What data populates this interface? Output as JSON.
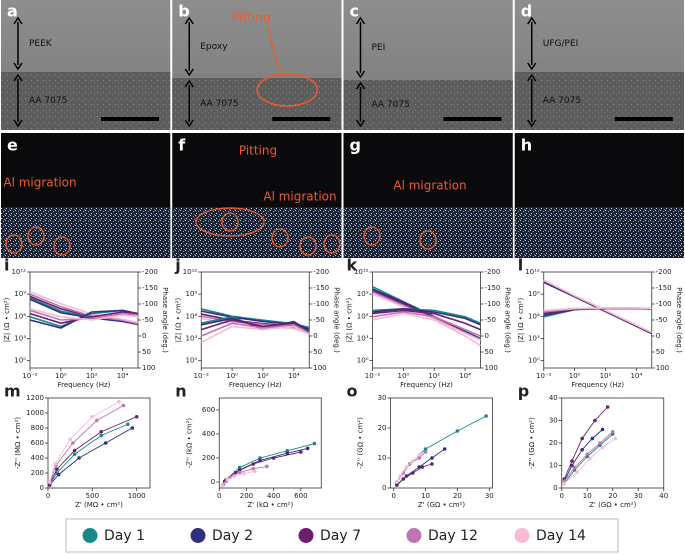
{
  "images": [
    {
      "label": "a",
      "layers": [
        "PEEK",
        "AA 7075"
      ]
    },
    {
      "label": "b",
      "layers": [
        "Epoxy",
        "AA 7075"
      ],
      "annotation": "Pitting"
    },
    {
      "label": "c",
      "layers": [
        "PEI",
        "AA 7075"
      ]
    },
    {
      "label": "d",
      "layers": [
        "UFG/PEI",
        "AA 7075"
      ]
    }
  ],
  "eds": [
    {
      "label": "e",
      "annotations": [
        "Al migration"
      ]
    },
    {
      "label": "f",
      "annotations": [
        "Pitting",
        "Al migration"
      ]
    },
    {
      "label": "g",
      "annotations": [
        "Al migration"
      ]
    },
    {
      "label": "h",
      "annotations": []
    }
  ],
  "legend": [
    {
      "label": "Day 1",
      "color": "#17898a"
    },
    {
      "label": "Day 2",
      "color": "#2f2f80"
    },
    {
      "label": "Day 7",
      "color": "#6e1d70"
    },
    {
      "label": "Day 12",
      "color": "#c174b4"
    },
    {
      "label": "Day 14",
      "color": "#f5bcd4"
    }
  ],
  "chart_data": [
    {
      "type": "bode",
      "panel_label": "i",
      "xlabel": "Frequency (Hz)",
      "ylabel": "|Z| (Ω • cm²)",
      "y2label": "Phase angle (deg.)",
      "log_x": true,
      "log_y": true,
      "x": [
        0.01,
        1,
        100,
        10000,
        100000
      ],
      "xlim": [
        0.01,
        100000
      ],
      "xticks": [
        {
          "value": 0.01,
          "label": "10⁻²"
        },
        {
          "value": 1,
          "label": "10⁰"
        },
        {
          "value": 100,
          "label": "10²"
        },
        {
          "value": 10000,
          "label": "10⁴"
        }
      ],
      "ylim": [
        0.1,
        1000000000000
      ],
      "yticks": [
        {
          "value": 1,
          "label": "10⁰"
        },
        {
          "value": 1000,
          "label": "10³"
        },
        {
          "value": 1000000,
          "label": "10⁶"
        },
        {
          "value": 1000000000,
          "label": "10⁹"
        },
        {
          "value": 1000000000000,
          "label": "10¹²"
        }
      ],
      "y2lim": [
        100,
        -200
      ],
      "y2ticks": [
        -200,
        -150,
        -100,
        -50,
        0,
        50,
        100
      ],
      "series": [
        {
          "values": [
            300000000,
            5000000,
            800000,
            300000,
            100000
          ]
        },
        {
          "values": [
            200000000,
            3000000,
            600000,
            200000,
            80000
          ]
        },
        {
          "values": [
            500000000,
            10000000,
            1000000,
            300000,
            100000
          ]
        },
        {
          "values": [
            1000000000,
            20000000,
            1000000,
            300000,
            100000
          ]
        },
        {
          "values": [
            2000000000,
            50000000,
            2000000,
            400000,
            150000
          ]
        },
        {
          "axis": "y2",
          "values": [
            -60,
            -30,
            -70,
            -80,
            -70
          ]
        },
        {
          "axis": "y2",
          "values": [
            -50,
            -25,
            -75,
            -80,
            -70
          ]
        },
        {
          "axis": "y2",
          "values": [
            -70,
            -40,
            -60,
            -75,
            -70
          ]
        },
        {
          "axis": "y2",
          "values": [
            -80,
            -50,
            -55,
            -70,
            -65
          ]
        },
        {
          "axis": "y2",
          "values": [
            -85,
            -60,
            -50,
            -65,
            -60
          ]
        }
      ]
    },
    {
      "type": "bode",
      "panel_label": "j",
      "xlabel": "Frequency (Hz)",
      "ylabel": "|Z| (Ω • cm²)",
      "y2label": "Phase angle (deg.)",
      "log_x": true,
      "log_y": true,
      "x": [
        0.01,
        1,
        100,
        10000,
        100000
      ],
      "xlim": [
        0.01,
        100000
      ],
      "xticks": [
        {
          "value": 0.01,
          "label": "10⁻²"
        },
        {
          "value": 1,
          "label": "10⁰"
        },
        {
          "value": 100,
          "label": "10²"
        },
        {
          "value": 10000,
          "label": "10⁴"
        }
      ],
      "ylim": [
        0.1,
        1000000000000
      ],
      "yticks": [
        {
          "value": 1,
          "label": "10⁰"
        },
        {
          "value": 1000,
          "label": "10³"
        },
        {
          "value": 1000000,
          "label": "10⁶"
        },
        {
          "value": 1000000000,
          "label": "10⁹"
        },
        {
          "value": 1000000000000,
          "label": "10¹²"
        }
      ],
      "y2lim": [
        100,
        -200
      ],
      "y2ticks": [
        -200,
        -150,
        -100,
        -50,
        0,
        50,
        100
      ],
      "series": [
        {
          "values": [
            10000000,
            1000000,
            300000,
            100000,
            30000
          ]
        },
        {
          "values": [
            5000000,
            800000,
            200000,
            80000,
            20000
          ]
        },
        {
          "values": [
            2000000,
            300000,
            100000,
            50000,
            10000
          ]
        },
        {
          "values": [
            1000000,
            200000,
            80000,
            30000,
            8000
          ]
        },
        {
          "values": [
            500000,
            100000,
            50000,
            20000,
            5000
          ]
        },
        {
          "axis": "y2",
          "values": [
            -40,
            -60,
            -20,
            -40,
            -10
          ]
        },
        {
          "axis": "y2",
          "values": [
            -35,
            -55,
            -25,
            -45,
            -15
          ]
        },
        {
          "axis": "y2",
          "values": [
            -20,
            -50,
            -30,
            -40,
            -10
          ]
        },
        {
          "axis": "y2",
          "values": [
            0,
            -40,
            -25,
            -35,
            -10
          ]
        },
        {
          "axis": "y2",
          "values": [
            20,
            -30,
            -20,
            -30,
            -5
          ]
        }
      ]
    },
    {
      "type": "bode",
      "panel_label": "k",
      "xlabel": "Frequency (Hz)",
      "ylabel": "|Z| (Ω • cm²)",
      "y2label": "Phase angle (deg.)",
      "log_x": true,
      "log_y": true,
      "x": [
        0.01,
        1,
        100,
        10000,
        100000
      ],
      "xlim": [
        0.01,
        100000
      ],
      "xticks": [
        {
          "value": 0.01,
          "label": "10⁻²"
        },
        {
          "value": 1,
          "label": "10⁰"
        },
        {
          "value": 100,
          "label": "10²"
        },
        {
          "value": 10000,
          "label": "10⁴"
        }
      ],
      "ylim": [
        0.1,
        1000000000000
      ],
      "yticks": [
        {
          "value": 1,
          "label": "10⁰"
        },
        {
          "value": 1000,
          "label": "10³"
        },
        {
          "value": 1000000,
          "label": "10⁶"
        },
        {
          "value": 1000000000,
          "label": "10⁹"
        },
        {
          "value": 1000000000000,
          "label": "10¹²"
        }
      ],
      "y2lim": [
        100,
        -200
      ],
      "y2ticks": [
        -200,
        -150,
        -100,
        -50,
        0,
        50,
        100
      ],
      "series": [
        {
          "values": [
            10000000000,
            100000000,
            1000000,
            10000,
            1000
          ]
        },
        {
          "values": [
            5000000000,
            80000000,
            800000,
            8000,
            900
          ]
        },
        {
          "values": [
            3000000000,
            50000000,
            600000,
            7000,
            800
          ]
        },
        {
          "values": [
            2000000000,
            30000000,
            500000,
            6000,
            700
          ]
        },
        {
          "values": [
            1000000000,
            20000000,
            400000,
            5000,
            600
          ]
        },
        {
          "axis": "y2",
          "values": [
            -80,
            -85,
            -80,
            -60,
            -40
          ]
        },
        {
          "axis": "y2",
          "values": [
            -75,
            -85,
            -75,
            -55,
            -35
          ]
        },
        {
          "axis": "y2",
          "values": [
            -70,
            -80,
            -70,
            -40,
            -20
          ]
        },
        {
          "axis": "y2",
          "values": [
            -60,
            -75,
            -60,
            -20,
            0
          ]
        },
        {
          "axis": "y2",
          "values": [
            -50,
            -70,
            -50,
            0,
            30
          ]
        }
      ]
    },
    {
      "type": "bode",
      "panel_label": "l",
      "xlabel": "Frequency (Hz)",
      "ylabel": "|Z| (Ω • cm²)",
      "y2label": "Phase angle (deg.)",
      "log_x": true,
      "log_y": true,
      "x": [
        0.01,
        1,
        100,
        10000,
        100000
      ],
      "xlim": [
        0.01,
        100000
      ],
      "xticks": [
        {
          "value": 0.01,
          "label": "10⁻²"
        },
        {
          "value": 1,
          "label": "10⁰"
        },
        {
          "value": 100,
          "label": "10²"
        },
        {
          "value": 10000,
          "label": "10⁴"
        }
      ],
      "ylim": [
        0.1,
        1000000000000
      ],
      "yticks": [
        {
          "value": 1,
          "label": "10⁰"
        },
        {
          "value": 1000,
          "label": "10³"
        },
        {
          "value": 1000000,
          "label": "10⁶"
        },
        {
          "value": 1000000000,
          "label": "10⁹"
        },
        {
          "value": 1000000000000,
          "label": "10¹²"
        }
      ],
      "y2lim": [
        100,
        -200
      ],
      "y2ticks": [
        -200,
        -150,
        -100,
        -50,
        0,
        50,
        100
      ],
      "series": [
        {
          "values": [
            50000000000,
            500000000,
            5000000,
            50000,
            5000
          ]
        },
        {
          "values": [
            40000000000,
            450000000,
            4500000,
            45000,
            4500
          ]
        },
        {
          "values": [
            60000000000,
            550000000,
            5500000,
            55000,
            5500
          ]
        },
        {
          "values": [
            70000000000,
            600000000,
            6000000,
            60000,
            6000
          ]
        },
        {
          "values": [
            80000000000,
            650000000,
            6500000,
            65000,
            6500
          ]
        },
        {
          "axis": "y2",
          "values": [
            -60,
            -82,
            -86,
            -86,
            -84
          ]
        },
        {
          "axis": "y2",
          "values": [
            -65,
            -83,
            -86,
            -86,
            -84
          ]
        },
        {
          "axis": "y2",
          "values": [
            -70,
            -84,
            -87,
            -87,
            -85
          ]
        },
        {
          "axis": "y2",
          "values": [
            -75,
            -85,
            -87,
            -87,
            -85
          ]
        },
        {
          "axis": "y2",
          "values": [
            -80,
            -86,
            -88,
            -88,
            -86
          ]
        }
      ]
    },
    {
      "type": "scatter",
      "panel_label": "m",
      "xlabel": "Z' (MΩ • cm²)",
      "ylabel": "-Z'' (MΩ • cm²)",
      "xlim": [
        0,
        1150
      ],
      "xticks": [
        0,
        500,
        1000
      ],
      "ylim": [
        0,
        1200
      ],
      "yticks": [
        0,
        200,
        400,
        600,
        800,
        1000,
        1200
      ],
      "series": [
        {
          "x": [
            20,
            100,
            300,
            600,
            900
          ],
          "values": [
            50,
            200,
            450,
            700,
            850
          ]
        },
        {
          "x": [
            20,
            120,
            350,
            650,
            950
          ],
          "values": [
            40,
            180,
            400,
            600,
            800
          ]
        },
        {
          "x": [
            20,
            100,
            300,
            600,
            1000
          ],
          "values": [
            60,
            250,
            500,
            750,
            950
          ]
        },
        {
          "x": [
            20,
            90,
            280,
            550,
            850
          ],
          "values": [
            70,
            300,
            600,
            900,
            1100
          ]
        },
        {
          "x": [
            20,
            80,
            250,
            500,
            800
          ],
          "values": [
            80,
            320,
            650,
            950,
            1150
          ]
        }
      ]
    },
    {
      "type": "scatter",
      "panel_label": "n",
      "xlabel": "Z' (kΩ • cm²)",
      "ylabel": "-Z'' (kΩ • cm²)",
      "xlim": [
        0,
        750
      ],
      "xticks": [
        0,
        200,
        400,
        600
      ],
      "ylim": [
        -50,
        700
      ],
      "yticks": [
        0,
        200,
        400,
        600
      ],
      "series": [
        {
          "x": [
            50,
            150,
            300,
            500,
            700
          ],
          "values": [
            20,
            120,
            200,
            260,
            320
          ]
        },
        {
          "x": [
            50,
            150,
            300,
            500,
            650
          ],
          "values": [
            10,
            100,
            180,
            240,
            280
          ]
        },
        {
          "x": [
            40,
            120,
            250,
            400,
            600
          ],
          "values": [
            5,
            80,
            150,
            200,
            250
          ]
        },
        {
          "x": [
            30,
            80,
            150,
            250,
            350
          ],
          "values": [
            -20,
            40,
            80,
            110,
            130
          ]
        },
        {
          "x": [
            20,
            60,
            110,
            180,
            260
          ],
          "values": [
            -30,
            20,
            50,
            70,
            90
          ]
        }
      ]
    },
    {
      "type": "scatter",
      "panel_label": "o",
      "xlabel": "Z' (GΩ • cm²)",
      "ylabel": "-Z'' (GΩ • cm²)",
      "xlim": [
        -1,
        31
      ],
      "xticks": [
        0,
        10,
        20,
        30
      ],
      "ylim": [
        0,
        30
      ],
      "yticks": [
        0,
        10,
        20,
        30
      ],
      "series": [
        {
          "x": [
            1,
            5,
            10,
            20,
            29
          ],
          "values": [
            2,
            8,
            13,
            19,
            24
          ]
        },
        {
          "x": [
            1,
            4,
            8,
            12,
            16
          ],
          "values": [
            1,
            4,
            7,
            10,
            13
          ]
        },
        {
          "x": [
            1,
            3,
            6,
            9,
            12
          ],
          "values": [
            1,
            3,
            5,
            7,
            8
          ]
        },
        {
          "x": [
            1,
            3,
            5,
            8,
            10
          ],
          "values": [
            2,
            5,
            8,
            10,
            12
          ]
        },
        {
          "x": [
            1,
            2,
            4,
            6,
            8
          ],
          "values": [
            2,
            4,
            7,
            9,
            11
          ]
        }
      ]
    },
    {
      "type": "scatter",
      "panel_label": "p",
      "xlabel": "Z' (GΩ • cm²)",
      "ylabel": "-Z'' (GΩ • cm²)",
      "xlim": [
        0,
        40
      ],
      "xticks": [
        0,
        10,
        20,
        30,
        40
      ],
      "ylim": [
        0,
        40
      ],
      "yticks": [
        0,
        10,
        20,
        30,
        40
      ],
      "series": [
        {
          "x": [
            1,
            5,
            10,
            15,
            20
          ],
          "values": [
            2,
            8,
            14,
            19,
            24
          ]
        },
        {
          "x": [
            1,
            4,
            8,
            12,
            16
          ],
          "values": [
            3,
            10,
            17,
            22,
            26
          ]
        },
        {
          "x": [
            1,
            4,
            8,
            13,
            18
          ],
          "values": [
            4,
            12,
            22,
            30,
            36
          ]
        },
        {
          "x": [
            1,
            5,
            10,
            15,
            20
          ],
          "values": [
            3,
            9,
            15,
            20,
            25
          ]
        },
        {
          "x": [
            1,
            6,
            11,
            16,
            21
          ],
          "values": [
            2,
            7,
            13,
            18,
            22
          ]
        }
      ]
    }
  ]
}
